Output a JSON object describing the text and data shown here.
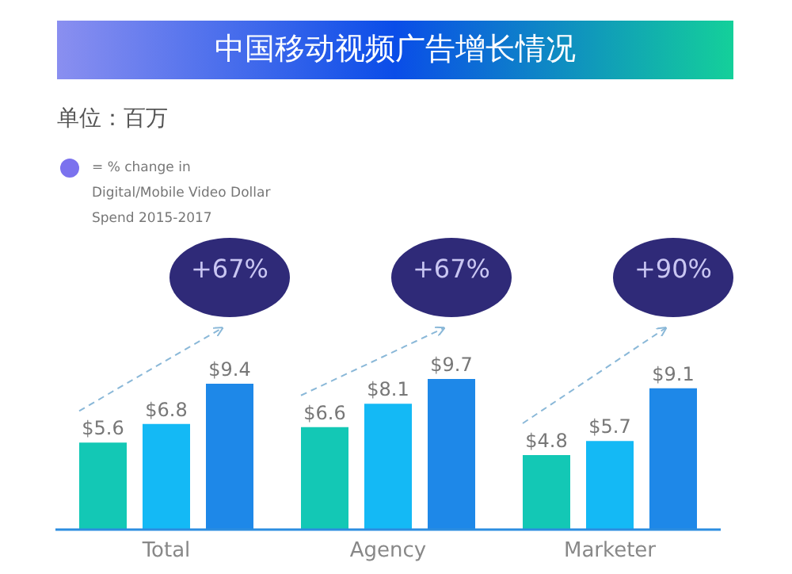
{
  "chart_data": {
    "type": "bar",
    "title": "中国移动视频广告增长情况",
    "subtitle": "单位：百万",
    "categories": [
      "Total",
      "Agency",
      "Marketer"
    ],
    "series": [
      {
        "color": "#13c8b5",
        "values": [
          5.6,
          6.6,
          4.8
        ],
        "value_labels": [
          "$5.6",
          "$6.6",
          "$4.8"
        ]
      },
      {
        "color": "#14b9f5",
        "values": [
          6.8,
          8.1,
          5.7
        ],
        "value_labels": [
          "$6.8",
          "$8.1",
          "$5.7"
        ]
      },
      {
        "color": "#1e88e8",
        "values": [
          9.4,
          9.7,
          9.1
        ],
        "value_labels": [
          "$9.4",
          "$9.7",
          "$9.1"
        ]
      }
    ],
    "annotations": [
      "= % change in\nDigital/Mobile Video Dollar\nSpend 2015-2017",
      "+67%",
      "+67%",
      "+90%"
    ]
  }
}
